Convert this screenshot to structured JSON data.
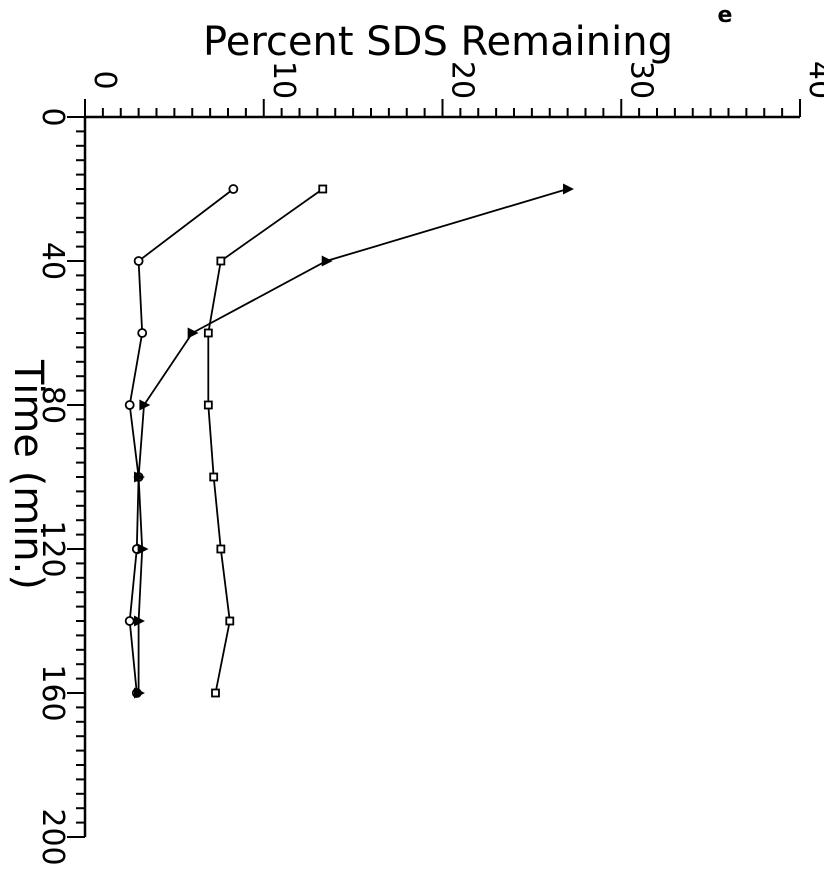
{
  "chart_data": {
    "type": "line",
    "title": "",
    "panel_label": "e",
    "xlabel": "Time (min.)",
    "ylabel": "Percent SDS Remaining",
    "xlim": [
      0,
      200
    ],
    "ylim": [
      0,
      40
    ],
    "x_ticks": [
      0,
      40,
      80,
      120,
      160,
      200
    ],
    "y_ticks": [
      0,
      10,
      20,
      30,
      40
    ],
    "grid": false,
    "legend": null,
    "orientation": "rotated 90 degrees clockwise",
    "series": [
      {
        "marker": "circle",
        "x": [
          20,
          40,
          60,
          80,
          100,
          120,
          140,
          160
        ],
        "y": [
          8.3,
          3.0,
          3.2,
          2.5,
          3.0,
          2.9,
          2.5,
          2.9
        ]
      },
      {
        "marker": "square",
        "x": [
          20,
          40,
          60,
          80,
          100,
          120,
          140,
          160
        ],
        "y": [
          13.3,
          7.6,
          6.9,
          6.9,
          7.2,
          7.6,
          8.1,
          7.3
        ]
      },
      {
        "marker": "triangle",
        "x": [
          20,
          40,
          60,
          80,
          100,
          120,
          140,
          160
        ],
        "y": [
          27.0,
          13.5,
          6.0,
          3.3,
          3.0,
          3.2,
          3.0,
          3.0
        ]
      }
    ]
  }
}
